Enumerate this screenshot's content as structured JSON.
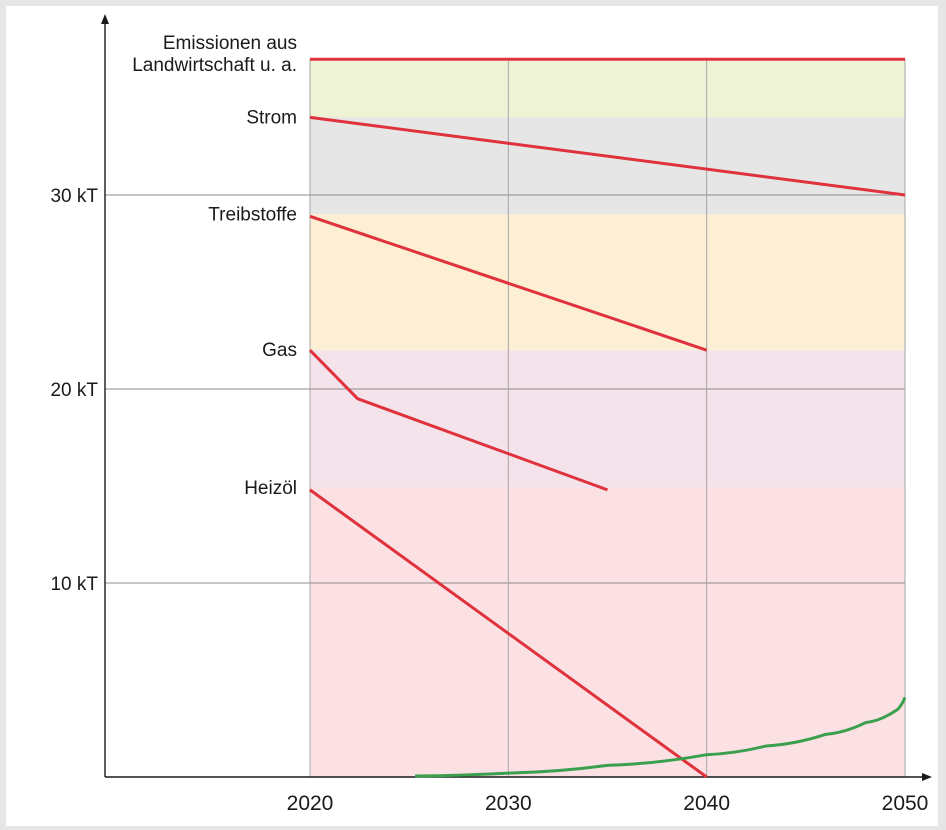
{
  "chart_data": {
    "type": "area",
    "y_unit": "kT",
    "ylim": [
      0,
      37
    ],
    "xlim": [
      2020,
      2050
    ],
    "yticks": [
      {
        "value": 10,
        "label": "10 kT"
      },
      {
        "value": 20,
        "label": "20 kT"
      },
      {
        "value": 30,
        "label": "30 kT"
      }
    ],
    "xticks": [
      {
        "value": 2020,
        "label": "2020"
      },
      {
        "value": 2030,
        "label": "2030"
      },
      {
        "value": 2040,
        "label": "2040"
      },
      {
        "value": 2050,
        "label": "2050"
      }
    ],
    "grid": true,
    "bands": [
      {
        "name": "Emissionen aus Landwirtschaft u. a.",
        "lines": [
          "Emissionen aus",
          "Landwirtschaft u. a."
        ],
        "bottom": 34.0,
        "top": 37.0,
        "color": "#eef3d5"
      },
      {
        "name": "Strom",
        "lines": [
          "Strom"
        ],
        "bottom": 29.0,
        "top": 34.0,
        "color": "#e6e6e6"
      },
      {
        "name": "Treibstoffe",
        "lines": [
          "Treibstoffe"
        ],
        "bottom": 22.0,
        "top": 29.0,
        "color": "#fcefd4"
      },
      {
        "name": "Gas",
        "lines": [
          "Gas"
        ],
        "bottom": 14.9,
        "top": 22.0,
        "color": "#f4e3ea"
      },
      {
        "name": "Heizöl",
        "lines": [
          "Heizöl"
        ],
        "bottom": 0,
        "top": 14.9,
        "color": "#fbe1e4"
      }
    ],
    "series": [
      {
        "key": "landwirtschaft",
        "color": "#e0323c",
        "points": [
          [
            2020,
            37.0
          ],
          [
            2050,
            37.0
          ]
        ]
      },
      {
        "key": "strom",
        "color": "#e0323c",
        "points": [
          [
            2020,
            34.0
          ],
          [
            2050,
            30.0
          ]
        ]
      },
      {
        "key": "treibstoffe",
        "color": "#e0323c",
        "points": [
          [
            2020,
            28.9
          ],
          [
            2040,
            22.0
          ]
        ]
      },
      {
        "key": "gas",
        "color": "#e0323c",
        "points": [
          [
            2020,
            22.0
          ],
          [
            2022.4,
            19.5
          ],
          [
            2035,
            14.8
          ]
        ]
      },
      {
        "key": "heizoel",
        "color": "#e0323c",
        "points": [
          [
            2020,
            14.8
          ],
          [
            2040,
            0
          ]
        ]
      },
      {
        "key": "green",
        "color": "#3aa04e",
        "points": [
          [
            2025.3,
            0.05
          ],
          [
            2030,
            0.2
          ],
          [
            2035,
            0.6
          ],
          [
            2040,
            1.15
          ],
          [
            2043,
            1.6
          ],
          [
            2046,
            2.2
          ],
          [
            2048,
            2.8
          ],
          [
            2049.5,
            3.4
          ],
          [
            2050,
            4.1
          ]
        ]
      }
    ]
  }
}
